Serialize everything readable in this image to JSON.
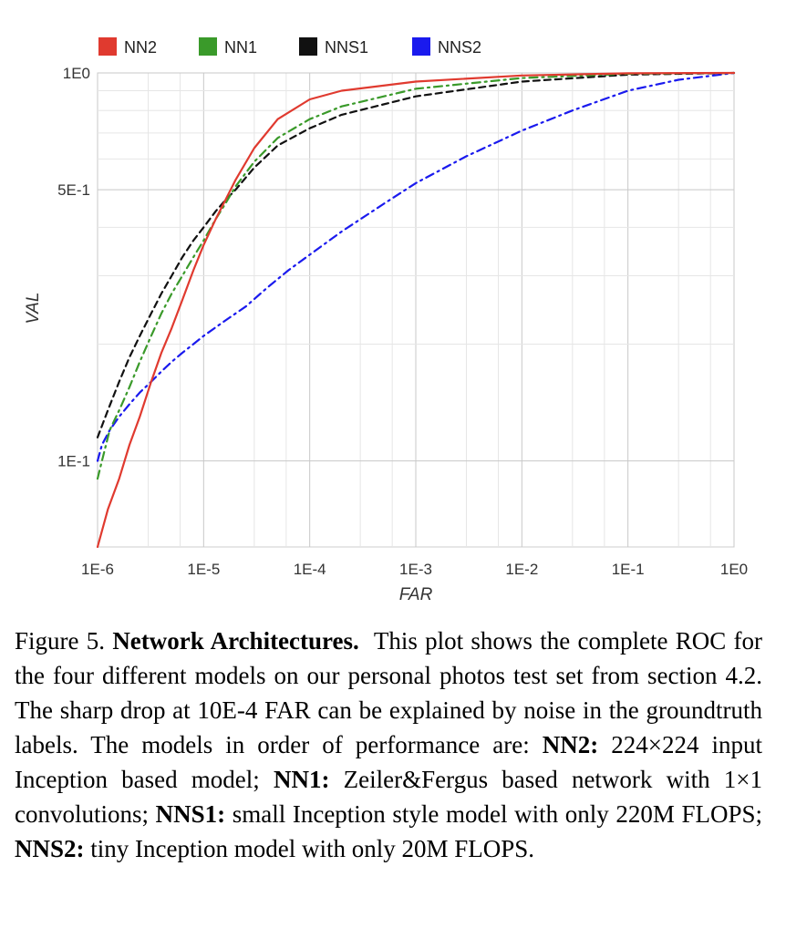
{
  "chart_data": {
    "type": "line",
    "xlabel": "FAR",
    "ylabel": "VAL",
    "x_scale": "log",
    "y_scale": "log",
    "xlim": [
      1e-06,
      1
    ],
    "ylim": [
      0.06,
      1
    ],
    "x_ticks": [
      {
        "value": 1e-06,
        "label": "1E-6"
      },
      {
        "value": 1e-05,
        "label": "1E-5"
      },
      {
        "value": 0.0001,
        "label": "1E-4"
      },
      {
        "value": 0.001,
        "label": "1E-3"
      },
      {
        "value": 0.01,
        "label": "1E-2"
      },
      {
        "value": 0.1,
        "label": "1E-1"
      },
      {
        "value": 1,
        "label": "1E0"
      }
    ],
    "y_ticks": [
      {
        "value": 1,
        "label": "1E0"
      },
      {
        "value": 0.5,
        "label": "5E-1"
      },
      {
        "value": 0.1,
        "label": "1E-1"
      }
    ],
    "grid": true,
    "legend_position": "top",
    "series": [
      {
        "name": "NN2",
        "color": "#e03a2f",
        "dash": "solid",
        "x": [
          1e-06,
          1.25e-06,
          1.6e-06,
          2e-06,
          2.5e-06,
          3.2e-06,
          4e-06,
          5e-06,
          6.3e-06,
          8e-06,
          1e-05,
          1.3e-05,
          1.6e-05,
          2e-05,
          3e-05,
          5e-05,
          0.0001,
          0.0002,
          0.001,
          0.01,
          0.1,
          1
        ],
        "y": [
          0.06,
          0.075,
          0.09,
          0.11,
          0.13,
          0.16,
          0.19,
          0.22,
          0.26,
          0.31,
          0.36,
          0.42,
          0.47,
          0.53,
          0.64,
          0.76,
          0.855,
          0.9,
          0.95,
          0.985,
          0.998,
          1.0
        ]
      },
      {
        "name": "NN1",
        "color": "#3a9a2a",
        "dash": "dash-dot",
        "x": [
          1e-06,
          1.1e-06,
          1.3e-06,
          1.6e-06,
          2e-06,
          2.5e-06,
          3.2e-06,
          4e-06,
          5e-06,
          6.3e-06,
          8e-06,
          1e-05,
          1.3e-05,
          1.6e-05,
          2e-05,
          3e-05,
          5e-05,
          0.0001,
          0.0002,
          0.001,
          0.01,
          0.1,
          1
        ],
        "y": [
          0.09,
          0.1,
          0.12,
          0.135,
          0.155,
          0.18,
          0.21,
          0.24,
          0.27,
          0.3,
          0.335,
          0.37,
          0.42,
          0.46,
          0.51,
          0.59,
          0.68,
          0.76,
          0.82,
          0.91,
          0.97,
          0.995,
          1.0
        ]
      },
      {
        "name": "NNS1",
        "color": "#111111",
        "dash": "dash",
        "x": [
          1e-06,
          1.25e-06,
          1.6e-06,
          2e-06,
          2.5e-06,
          3.2e-06,
          4e-06,
          5e-06,
          6.3e-06,
          8e-06,
          1e-05,
          1.3e-05,
          1.6e-05,
          2e-05,
          3e-05,
          5e-05,
          0.0001,
          0.0002,
          0.001,
          0.01,
          0.1,
          1
        ],
        "y": [
          0.115,
          0.135,
          0.16,
          0.185,
          0.21,
          0.24,
          0.27,
          0.3,
          0.335,
          0.37,
          0.4,
          0.44,
          0.47,
          0.5,
          0.57,
          0.65,
          0.72,
          0.78,
          0.87,
          0.95,
          0.99,
          1.0
        ]
      },
      {
        "name": "NNS2",
        "color": "#1a1aee",
        "dash": "dash-dot",
        "x": [
          1e-06,
          1.1e-06,
          1.3e-06,
          1.6e-06,
          2e-06,
          2.5e-06,
          3.2e-06,
          4e-06,
          5e-06,
          6.3e-06,
          8e-06,
          1e-05,
          1.6e-05,
          2.5e-05,
          4e-05,
          6.3e-05,
          0.0001,
          0.0002,
          0.0005,
          0.001,
          0.003,
          0.01,
          0.03,
          0.1,
          0.3,
          1
        ],
        "y": [
          0.1,
          0.11,
          0.12,
          0.13,
          0.14,
          0.15,
          0.16,
          0.17,
          0.18,
          0.19,
          0.2,
          0.21,
          0.23,
          0.25,
          0.28,
          0.31,
          0.34,
          0.39,
          0.46,
          0.52,
          0.61,
          0.71,
          0.8,
          0.9,
          0.96,
          1.0
        ]
      }
    ]
  },
  "caption": {
    "figure_label": "Figure 5.",
    "title": "Network Architectures.",
    "text_1": "This plot shows the complete ROC for the four different models on our personal photos test set from section 4.2. The sharp drop at 10E-4 FAR can be explained by noise in the groundtruth labels. The models in order of performance are:",
    "nn2_label": "NN2:",
    "nn2_text": "224×224 input Inception based model;",
    "nn1_label": "NN1:",
    "nn1_text": "Zeiler&Fergus based network with 1×1 convolutions;",
    "nns1_label": "NNS1:",
    "nns1_text": "small Inception style model with only 220M FLOPS;",
    "nns2_label": "NNS2:",
    "nns2_text": "tiny Inception model with only 20M FLOPS."
  }
}
